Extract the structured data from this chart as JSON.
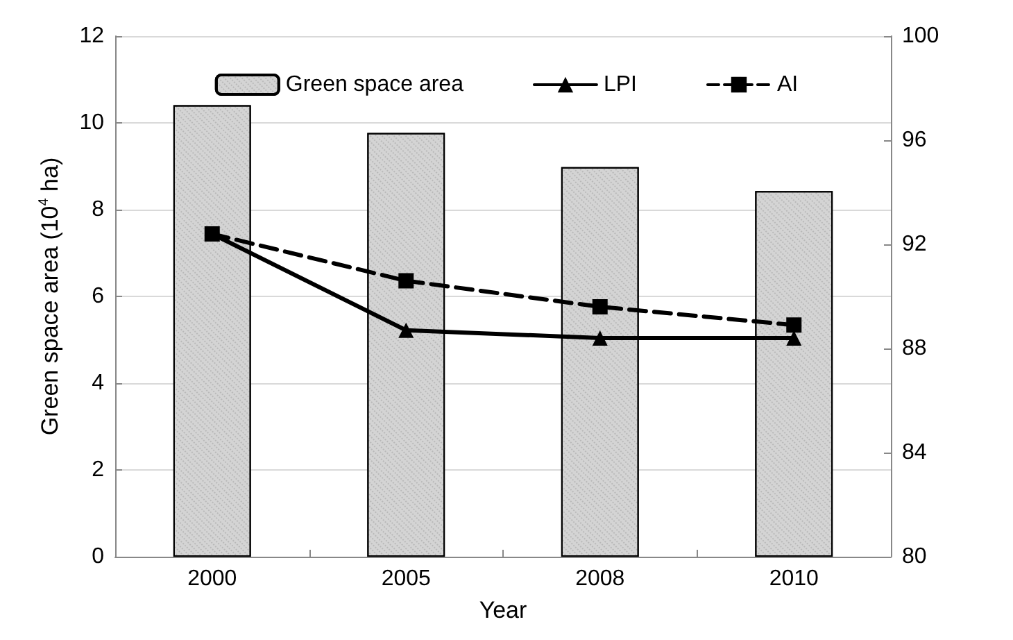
{
  "chart_data": {
    "type": "bar",
    "xlabel": "Year",
    "ylabel": "Green space area (10$^{4}$ ha)",
    "categories": [
      "2000",
      "2005",
      "2008",
      "2010"
    ],
    "series": [
      {
        "name": "Green space area",
        "color": "#d4d4d4",
        "values": [
          10.41,
          9.77,
          8.98,
          8.43
        ]
      },
      {
        "name": "LPI",
        "type": "line",
        "axis": "y2",
        "color": "#000000",
        "marker": "triangle",
        "line_style": "solid",
        "values": [
          92.4,
          88.7,
          88.4,
          88.4
        ]
      },
      {
        "name": "AI",
        "type": "line",
        "axis": "y2",
        "color": "#000000",
        "marker": "square",
        "line_style": "dashed",
        "values": [
          92.4,
          90.6,
          89.6,
          88.9
        ]
      }
    ],
    "ylim": [
      0,
      12
    ],
    "yticks": [
      0,
      2,
      4,
      6,
      8,
      10,
      12
    ],
    "y2lim": [
      80,
      100
    ],
    "y2ticks": [
      80,
      84,
      88,
      92,
      96,
      100
    ],
    "grid": "y",
    "legend": "top"
  }
}
